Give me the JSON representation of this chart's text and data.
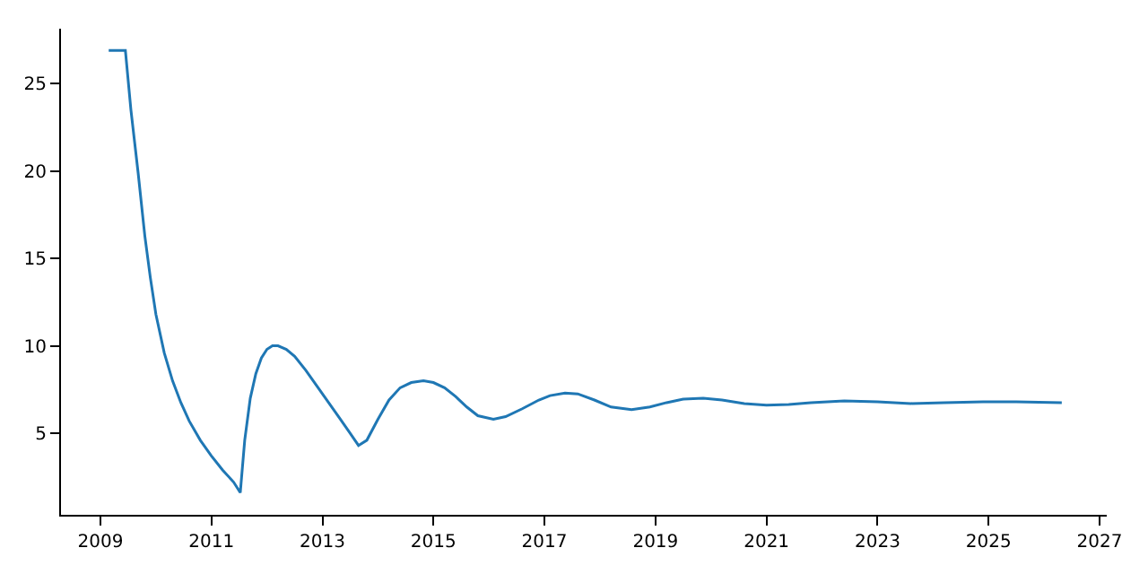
{
  "chart_data": {
    "type": "line",
    "x": [
      2009.15,
      2009.45,
      2009.55,
      2009.68,
      2009.8,
      2009.9,
      2010.0,
      2010.15,
      2010.3,
      2010.45,
      2010.6,
      2010.8,
      2011.0,
      2011.2,
      2011.4,
      2011.52,
      2011.6,
      2011.7,
      2011.8,
      2011.9,
      2012.0,
      2012.1,
      2012.2,
      2012.35,
      2012.5,
      2012.7,
      2012.9,
      2013.1,
      2013.3,
      2013.5,
      2013.65,
      2013.8,
      2014.0,
      2014.2,
      2014.4,
      2014.6,
      2014.82,
      2015.0,
      2015.2,
      2015.4,
      2015.6,
      2015.8,
      2016.08,
      2016.3,
      2016.6,
      2016.9,
      2017.1,
      2017.37,
      2017.6,
      2017.9,
      2018.2,
      2018.57,
      2018.9,
      2019.2,
      2019.5,
      2019.86,
      2020.2,
      2020.6,
      2021.0,
      2021.4,
      2021.8,
      2022.4,
      2023.0,
      2023.6,
      2024.2,
      2024.9,
      2025.5,
      2026.32
    ],
    "values": [
      26.9,
      26.9,
      23.5,
      19.9,
      16.3,
      13.9,
      11.8,
      9.6,
      8.0,
      6.75,
      5.7,
      4.6,
      3.7,
      2.9,
      2.2,
      1.6,
      4.6,
      7.0,
      8.4,
      9.3,
      9.8,
      10.0,
      10.0,
      9.8,
      9.4,
      8.6,
      7.7,
      6.8,
      5.9,
      5.0,
      4.3,
      4.6,
      5.8,
      6.9,
      7.6,
      7.9,
      8.0,
      7.9,
      7.6,
      7.1,
      6.5,
      6.0,
      5.8,
      5.95,
      6.4,
      6.9,
      7.15,
      7.3,
      7.25,
      6.9,
      6.5,
      6.35,
      6.5,
      6.75,
      6.95,
      7.0,
      6.9,
      6.7,
      6.6,
      6.65,
      6.75,
      6.85,
      6.8,
      6.7,
      6.75,
      6.8,
      6.8,
      6.75
    ],
    "color": "#1f77b4",
    "xlim": [
      2008.29,
      2027.13
    ],
    "ylim": [
      0.33,
      28.15
    ],
    "xticks": [
      2009,
      2011,
      2013,
      2015,
      2017,
      2019,
      2021,
      2023,
      2025,
      2027
    ],
    "yticks": [
      5,
      10,
      15,
      20,
      25
    ],
    "legend": false,
    "marker": "none",
    "line_style": "solid"
  }
}
